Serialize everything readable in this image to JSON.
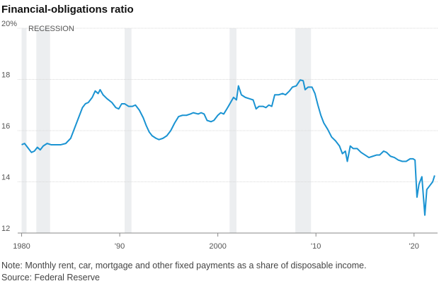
{
  "chart_data": {
    "type": "line",
    "title": "Financial-obligations ratio",
    "recession_label": "RECESSION",
    "note": "Note: Monthly rent, car, mortgage and other fixed payments as a share of disposable income.",
    "source": "Source: Federal Reserve",
    "xlim": [
      1979.6,
      2022.4
    ],
    "ylim": [
      12,
      20
    ],
    "xticks": [
      {
        "value": 1980,
        "label": "1980"
      },
      {
        "value": 1990,
        "label": "'90"
      },
      {
        "value": 2000,
        "label": "2000"
      },
      {
        "value": 2010,
        "label": "'10"
      },
      {
        "value": 2020,
        "label": "'20"
      }
    ],
    "yticks": [
      12,
      14,
      16,
      18,
      {
        "value": 20,
        "label": "20%"
      }
    ],
    "grid": true,
    "recessions": [
      [
        1980.0,
        1980.5
      ],
      [
        1981.5,
        1982.9
      ],
      [
        1990.5,
        1991.2
      ],
      [
        2001.2,
        2001.9
      ],
      [
        2007.9,
        2009.5
      ]
    ],
    "recession_color": "#eceef0",
    "series": [
      {
        "name": "Financial-obligations ratio",
        "color": "#1a93d2",
        "x": [
          1980.0,
          1980.3,
          1980.7,
          1981.0,
          1981.3,
          1981.6,
          1981.9,
          1982.2,
          1982.6,
          1983.0,
          1983.5,
          1984.0,
          1984.5,
          1985.0,
          1985.5,
          1985.8,
          1986.2,
          1986.5,
          1986.8,
          1987.2,
          1987.5,
          1987.8,
          1988.0,
          1988.3,
          1988.7,
          1989.2,
          1989.6,
          1989.9,
          1990.2,
          1990.5,
          1990.9,
          1991.3,
          1991.6,
          1992.0,
          1992.4,
          1992.7,
          1993.0,
          1993.3,
          1993.7,
          1994.0,
          1994.4,
          1994.8,
          1995.2,
          1995.6,
          1996.0,
          1996.4,
          1996.8,
          1997.2,
          1997.5,
          1998.0,
          1998.3,
          1998.6,
          1998.9,
          1999.3,
          1999.6,
          2000.0,
          2000.3,
          2000.6,
          2001.0,
          2001.3,
          2001.6,
          2001.9,
          2002.1,
          2002.4,
          2002.8,
          2003.2,
          2003.6,
          2003.9,
          2004.2,
          2004.6,
          2004.9,
          2005.2,
          2005.5,
          2005.8,
          2006.2,
          2006.6,
          2006.9,
          2007.3,
          2007.6,
          2008.0,
          2008.4,
          2008.7,
          2008.9,
          2009.2,
          2009.6,
          2009.9,
          2010.2,
          2010.5,
          2010.8,
          2011.2,
          2011.6,
          2012.0,
          2012.4,
          2012.7,
          2013.0,
          2013.2,
          2013.5,
          2013.8,
          2014.2,
          2014.6,
          2015.0,
          2015.4,
          2015.8,
          2016.2,
          2016.5,
          2016.9,
          2017.2,
          2017.6,
          2018.0,
          2018.4,
          2018.8,
          2019.2,
          2019.6,
          2019.9,
          2020.1,
          2020.3,
          2020.5,
          2020.8,
          2021.1,
          2021.3,
          2021.6,
          2021.9,
          2022.1
        ],
        "values": [
          15.45,
          15.5,
          15.3,
          15.15,
          15.2,
          15.35,
          15.25,
          15.4,
          15.5,
          15.45,
          15.45,
          15.45,
          15.5,
          15.7,
          16.2,
          16.5,
          16.9,
          17.05,
          17.1,
          17.3,
          17.55,
          17.45,
          17.6,
          17.4,
          17.25,
          17.1,
          16.9,
          16.85,
          17.05,
          17.05,
          16.95,
          16.95,
          17.0,
          16.8,
          16.5,
          16.2,
          15.95,
          15.8,
          15.7,
          15.65,
          15.7,
          15.8,
          16.0,
          16.3,
          16.55,
          16.6,
          16.6,
          16.65,
          16.7,
          16.65,
          16.7,
          16.65,
          16.4,
          16.35,
          16.4,
          16.6,
          16.7,
          16.65,
          16.9,
          17.1,
          17.3,
          17.2,
          17.75,
          17.4,
          17.3,
          17.25,
          17.2,
          16.85,
          16.95,
          16.95,
          16.9,
          17.0,
          16.95,
          17.4,
          17.4,
          17.45,
          17.4,
          17.55,
          17.7,
          17.75,
          17.98,
          17.95,
          17.6,
          17.7,
          17.7,
          17.45,
          17.0,
          16.6,
          16.3,
          16.05,
          15.75,
          15.6,
          15.4,
          15.1,
          15.2,
          14.8,
          15.4,
          15.3,
          15.3,
          15.15,
          15.05,
          14.95,
          15.0,
          15.05,
          15.05,
          15.2,
          15.15,
          15.0,
          14.95,
          14.85,
          14.8,
          14.8,
          14.9,
          14.9,
          14.85,
          13.4,
          13.9,
          14.2,
          12.7,
          13.7,
          13.85,
          14.0,
          14.25
        ]
      }
    ]
  }
}
